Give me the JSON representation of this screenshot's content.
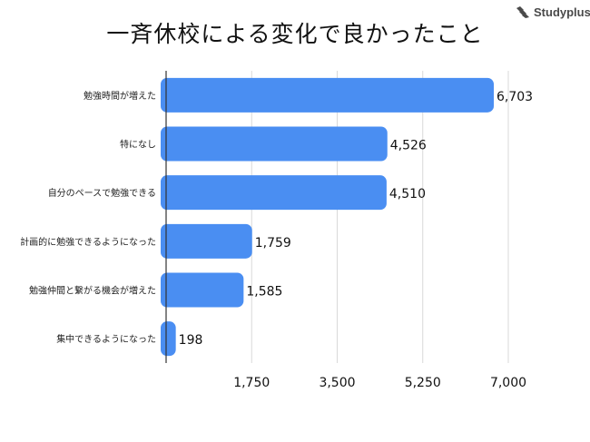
{
  "logo": {
    "text": "Studyplus",
    "icon": "studyplus-logo-icon"
  },
  "chart_data": {
    "type": "bar",
    "orientation": "horizontal",
    "title": "一斉休校による変化で良かったこと",
    "categories": [
      "勉強時間が増えた",
      "特になし",
      "自分のペースで勉強できる",
      "計画的に勉強できるようになった",
      "勉強仲間と繋がる機会が増えた",
      "集中できるようになった"
    ],
    "values": [
      6703,
      4526,
      4510,
      1759,
      1585,
      198
    ],
    "value_labels": [
      "6,703",
      "4,526",
      "4,510",
      "1,759",
      "1,585",
      "198"
    ],
    "xlim": [
      0,
      7000
    ],
    "xticks": [
      1750,
      3500,
      5250,
      7000
    ],
    "xtick_labels": [
      "1,750",
      "3,500",
      "5,250",
      "7,000"
    ],
    "grid": true,
    "bar_color": "#4a8ef2",
    "grid_color": "#d9d9d9",
    "axis_color": "#333333"
  }
}
